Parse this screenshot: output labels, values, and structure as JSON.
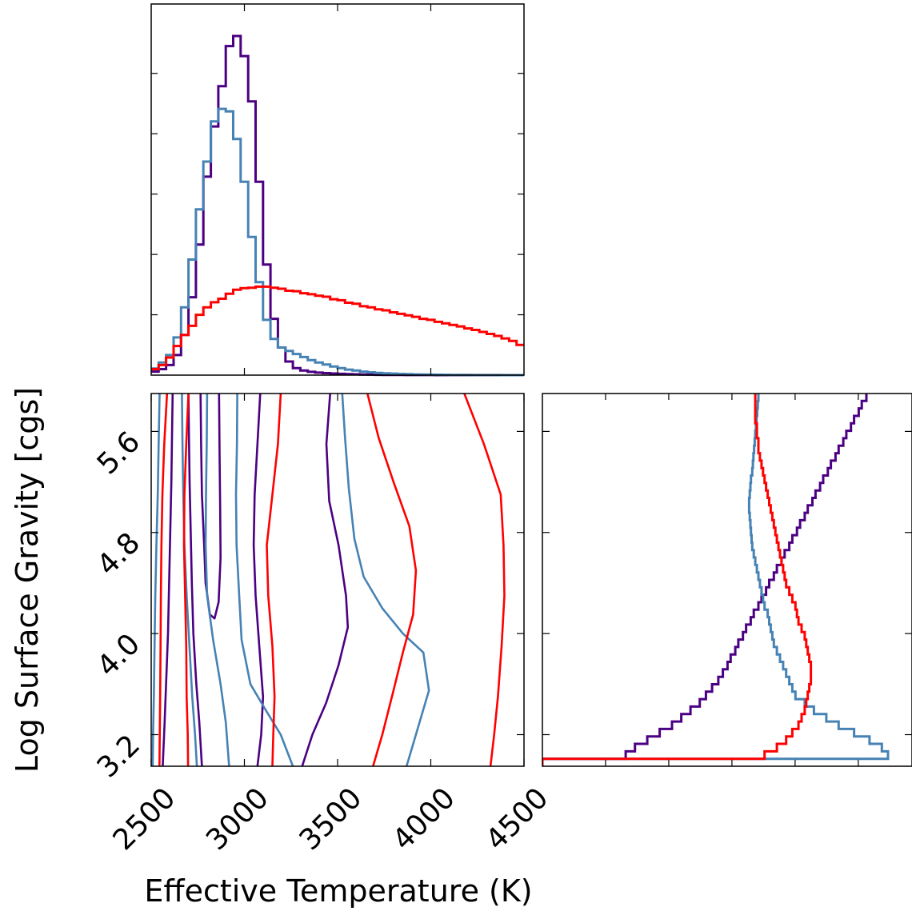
{
  "colors": {
    "red": "#ff0000",
    "steelblue": "#4682b4",
    "purple": "#4b0082"
  },
  "chart_data": [
    {
      "panel": "top-left",
      "type": "histogram",
      "xlim": [
        2500,
        4500
      ],
      "x_tick_values": [
        3000,
        3500,
        4000
      ],
      "y_ticks": 5,
      "bins": {
        "start": 2500,
        "width": 40,
        "count": 50
      },
      "series": [
        {
          "color_key": "purple",
          "counts": [
            0.7,
            1.2,
            2.0,
            4.0,
            8.0,
            15.5,
            26.0,
            39.5,
            49.5,
            57.5,
            65.5,
            67.5,
            63.5,
            54.5,
            38.5,
            22.0,
            11.2,
            5.5,
            2.7,
            1.4,
            0.9,
            0.65,
            0.5,
            0.4,
            0.32,
            0.25,
            0.2,
            0.16,
            0.12,
            0.09,
            0.07,
            0.05,
            0.04,
            0.03,
            0.02,
            0.015,
            0.01,
            0.01,
            0.005,
            0,
            0,
            0,
            0,
            0,
            0,
            0,
            0,
            0,
            0,
            0
          ]
        },
        {
          "color_key": "steelblue",
          "counts": [
            1.3,
            2.5,
            4.0,
            7.5,
            13.5,
            23.0,
            33.0,
            42.5,
            50.5,
            53.0,
            52.5,
            47.0,
            38.5,
            27.5,
            18.5,
            11.0,
            7.2,
            5.5,
            4.8,
            4.2,
            3.6,
            3.0,
            2.5,
            2.1,
            1.7,
            1.4,
            1.1,
            0.9,
            0.7,
            0.55,
            0.45,
            0.36,
            0.3,
            0.24,
            0.19,
            0.15,
            0.12,
            0.1,
            0.08,
            0.06,
            0.05,
            0.04,
            0.03,
            0.02,
            0.015,
            0.01,
            0.01,
            0.005,
            0.005,
            0
          ]
        },
        {
          "color_key": "red",
          "counts": [
            1.2,
            2.0,
            3.5,
            5.8,
            8.0,
            9.8,
            12.0,
            13.5,
            14.5,
            15.2,
            16.2,
            17.0,
            17.3,
            17.4,
            17.6,
            17.6,
            17.4,
            17.2,
            16.8,
            16.7,
            16.3,
            16.1,
            15.8,
            15.6,
            15.1,
            14.9,
            14.4,
            14.2,
            13.7,
            13.5,
            13.1,
            12.9,
            12.5,
            12.2,
            11.9,
            11.6,
            11.2,
            11.0,
            10.6,
            10.3,
            10.0,
            9.7,
            9.3,
            9.0,
            8.6,
            8.2,
            7.8,
            7.3,
            6.8,
            6.0
          ]
        }
      ]
    },
    {
      "panel": "bottom-left",
      "type": "contour",
      "xlabel": "Effective Temperature (K)",
      "ylabel": "Log Surface Gravity [cgs]",
      "xlim": [
        2500,
        4500
      ],
      "ylim": [
        2.95,
        5.9
      ],
      "x_ticks": [
        {
          "value": 2500,
          "label": "2500"
        },
        {
          "value": 3000,
          "label": "3000"
        },
        {
          "value": 3500,
          "label": "3500"
        },
        {
          "value": 4000,
          "label": "4000"
        },
        {
          "value": 4500,
          "label": "4500"
        }
      ],
      "y_ticks": [
        {
          "value": 3.2,
          "label": "3.2"
        },
        {
          "value": 4.0,
          "label": "4.0"
        },
        {
          "value": 4.8,
          "label": "4.8"
        },
        {
          "value": 5.6,
          "label": "5.6"
        }
      ],
      "contours": [
        {
          "color_key": "purple",
          "points": [
            [
              2615,
              5.9
            ],
            [
              2612,
              5.6
            ],
            [
              2608,
              5.2
            ],
            [
              2602,
              4.8
            ],
            [
              2596,
              4.4
            ],
            [
              2590,
              4.0
            ],
            [
              2580,
              3.6
            ],
            [
              2572,
              3.3
            ],
            [
              2562,
              2.95
            ]
          ]
        },
        {
          "color_key": "purple",
          "points": [
            [
              2700,
              5.9
            ],
            [
              2702,
              5.6
            ],
            [
              2706,
              5.2
            ],
            [
              2712,
              4.8
            ],
            [
              2718,
              4.4
            ],
            [
              2726,
              4.0
            ],
            [
              2742,
              3.6
            ],
            [
              2758,
              3.3
            ],
            [
              2772,
              2.95
            ]
          ]
        },
        {
          "color_key": "purple",
          "points": [
            [
              2765,
              5.9
            ],
            [
              2768,
              5.5
            ],
            [
              2772,
              5.1
            ],
            [
              2784,
              4.7
            ],
            [
              2792,
              4.4
            ],
            [
              2815,
              4.15
            ],
            [
              2840,
              4.12
            ],
            [
              2862,
              4.25
            ],
            [
              2872,
              4.6
            ],
            [
              2870,
              5.0
            ],
            [
              2867,
              5.4
            ],
            [
              2864,
              5.9
            ]
          ]
        },
        {
          "color_key": "purple",
          "points": [
            [
              3085,
              5.9
            ],
            [
              3070,
              5.5
            ],
            [
              3055,
              5.1
            ],
            [
              3050,
              4.7
            ],
            [
              3060,
              4.3
            ],
            [
              3080,
              3.9
            ],
            [
              3100,
              3.5
            ],
            [
              3090,
              3.2
            ],
            [
              3070,
              2.95
            ]
          ]
        },
        {
          "color_key": "purple",
          "points": [
            [
              3460,
              5.9
            ],
            [
              3440,
              5.5
            ],
            [
              3455,
              5.05
            ],
            [
              3505,
              4.7
            ],
            [
              3545,
              4.3
            ],
            [
              3555,
              4.05
            ],
            [
              3505,
              3.75
            ],
            [
              3438,
              3.45
            ],
            [
              3365,
              3.2
            ],
            [
              3310,
              2.95
            ]
          ]
        },
        {
          "color_key": "steelblue",
          "points": [
            [
              2545,
              5.9
            ],
            [
              2540,
              5.5
            ],
            [
              2535,
              5.1
            ],
            [
              2528,
              4.7
            ],
            [
              2522,
              4.3
            ],
            [
              2518,
              3.9
            ],
            [
              2514,
              3.5
            ],
            [
              2510,
              3.2
            ],
            [
              2508,
              2.95
            ]
          ]
        },
        {
          "color_key": "steelblue",
          "points": [
            [
              2665,
              5.9
            ],
            [
              2668,
              5.5
            ],
            [
              2672,
              5.1
            ],
            [
              2678,
              4.7
            ],
            [
              2690,
              4.3
            ],
            [
              2705,
              3.9
            ],
            [
              2720,
              3.5
            ],
            [
              2735,
              3.2
            ],
            [
              2745,
              2.95
            ]
          ]
        },
        {
          "color_key": "steelblue",
          "points": [
            [
              2800,
              5.9
            ],
            [
              2798,
              5.5
            ],
            [
              2794,
              5.1
            ],
            [
              2792,
              4.7
            ],
            [
              2800,
              4.3
            ],
            [
              2832,
              3.95
            ],
            [
              2872,
              3.6
            ],
            [
              2900,
              3.3
            ],
            [
              2918,
              2.95
            ]
          ]
        },
        {
          "color_key": "steelblue",
          "points": [
            [
              2962,
              5.9
            ],
            [
              2960,
              5.5
            ],
            [
              2955,
              5.1
            ],
            [
              2958,
              4.7
            ],
            [
              2972,
              4.3
            ],
            [
              2985,
              3.95
            ],
            [
              3032,
              3.6
            ],
            [
              3112,
              3.4
            ],
            [
              3195,
              3.2
            ],
            [
              3260,
              2.95
            ]
          ]
        },
        {
          "color_key": "steelblue",
          "points": [
            [
              3525,
              5.9
            ],
            [
              3540,
              5.55
            ],
            [
              3560,
              5.15
            ],
            [
              3590,
              4.75
            ],
            [
              3640,
              4.45
            ],
            [
              3740,
              4.2
            ],
            [
              3850,
              4.0
            ],
            [
              3960,
              3.85
            ],
            [
              3990,
              3.55
            ],
            [
              3920,
              3.2
            ],
            [
              3870,
              2.95
            ]
          ]
        },
        {
          "color_key": "red",
          "points": [
            [
              2585,
              5.9
            ],
            [
              2570,
              5.5
            ],
            [
              2560,
              5.1
            ],
            [
              2555,
              4.7
            ],
            [
              2552,
              4.3
            ],
            [
              2550,
              3.9
            ],
            [
              2548,
              3.5
            ],
            [
              2546,
              3.2
            ],
            [
              2544,
              2.95
            ]
          ]
        },
        {
          "color_key": "red",
          "points": [
            [
              2700,
              5.9
            ],
            [
              2688,
              5.5
            ],
            [
              2678,
              5.1
            ],
            [
              2676,
              4.7
            ],
            [
              2682,
              4.3
            ],
            [
              2688,
              3.9
            ],
            [
              2690,
              3.5
            ],
            [
              2696,
              3.2
            ],
            [
              2698,
              2.95
            ]
          ]
        },
        {
          "color_key": "red",
          "points": [
            [
              3195,
              5.9
            ],
            [
              3180,
              5.5
            ],
            [
              3150,
              5.1
            ],
            [
              3120,
              4.7
            ],
            [
              3128,
              4.3
            ],
            [
              3150,
              3.9
            ],
            [
              3162,
              3.5
            ],
            [
              3155,
              3.2
            ],
            [
              3150,
              2.95
            ]
          ]
        },
        {
          "color_key": "red",
          "points": [
            [
              3660,
              5.9
            ],
            [
              3720,
              5.55
            ],
            [
              3800,
              5.2
            ],
            [
              3885,
              4.85
            ],
            [
              3920,
              4.5
            ],
            [
              3905,
              4.15
            ],
            [
              3850,
              3.85
            ],
            [
              3800,
              3.55
            ],
            [
              3740,
              3.2
            ],
            [
              3690,
              2.95
            ]
          ]
        },
        {
          "color_key": "red",
          "points": [
            [
              4180,
              5.9
            ],
            [
              4285,
              5.5
            ],
            [
              4375,
              5.1
            ],
            [
              4390,
              4.7
            ],
            [
              4395,
              4.3
            ],
            [
              4380,
              3.9
            ],
            [
              4360,
              3.5
            ],
            [
              4340,
              3.2
            ],
            [
              4320,
              2.95
            ]
          ]
        }
      ]
    },
    {
      "panel": "bottom-right",
      "type": "histogram",
      "orientation": "horizontal",
      "ylim": [
        2.95,
        5.9
      ],
      "x_ticks": 6,
      "y_tick_values": [
        3.2,
        4.0,
        4.8,
        5.6
      ],
      "bins": {
        "start": 2.95,
        "width": 0.059,
        "count": 50
      },
      "series": [
        {
          "color_key": "purple",
          "counts": [
            0,
            2.7,
            3.0,
            3.4,
            3.8,
            4.2,
            4.5,
            4.8,
            5.1,
            5.3,
            5.5,
            5.7,
            5.85,
            6.0,
            6.1,
            6.25,
            6.35,
            6.5,
            6.6,
            6.75,
            6.85,
            7.0,
            7.1,
            7.25,
            7.35,
            7.5,
            7.6,
            7.75,
            7.85,
            8.0,
            8.1,
            8.25,
            8.35,
            8.5,
            8.6,
            8.75,
            8.85,
            9.0,
            9.1,
            9.25,
            9.35,
            9.5,
            9.6,
            9.75,
            9.85,
            10.0,
            10.1,
            10.25,
            10.35,
            10.5
          ]
        },
        {
          "color_key": "steelblue",
          "points_note": "",
          "counts": [
            0,
            11.2,
            11.0,
            10.6,
            10.1,
            9.6,
            9.2,
            8.8,
            8.5,
            8.2,
            8.1,
            8.0,
            7.9,
            7.8,
            7.7,
            7.6,
            7.5,
            7.45,
            7.4,
            7.35,
            7.3,
            7.2,
            7.15,
            7.1,
            7.05,
            7.0,
            6.95,
            6.9,
            6.85,
            6.8,
            6.78,
            6.76,
            6.74,
            6.72,
            6.7,
            6.7,
            6.72,
            6.74,
            6.76,
            6.8,
            6.82,
            6.84,
            6.86,
            6.88,
            6.9,
            6.92,
            6.94,
            6.96,
            6.98,
            7.0
          ]
        },
        {
          "color_key": "red",
          "counts": [
            0,
            7.2,
            7.6,
            7.9,
            8.1,
            8.3,
            8.4,
            8.5,
            8.55,
            8.6,
            8.65,
            8.7,
            8.7,
            8.7,
            8.65,
            8.6,
            8.55,
            8.5,
            8.4,
            8.3,
            8.25,
            8.2,
            8.1,
            8.0,
            7.9,
            7.85,
            7.8,
            7.75,
            7.7,
            7.65,
            7.6,
            7.55,
            7.5,
            7.45,
            7.4,
            7.35,
            7.3,
            7.25,
            7.2,
            7.15,
            7.1,
            7.05,
            7.0,
            7.0,
            6.95,
            6.95,
            6.9,
            6.9,
            6.9,
            6.9
          ]
        }
      ]
    }
  ]
}
